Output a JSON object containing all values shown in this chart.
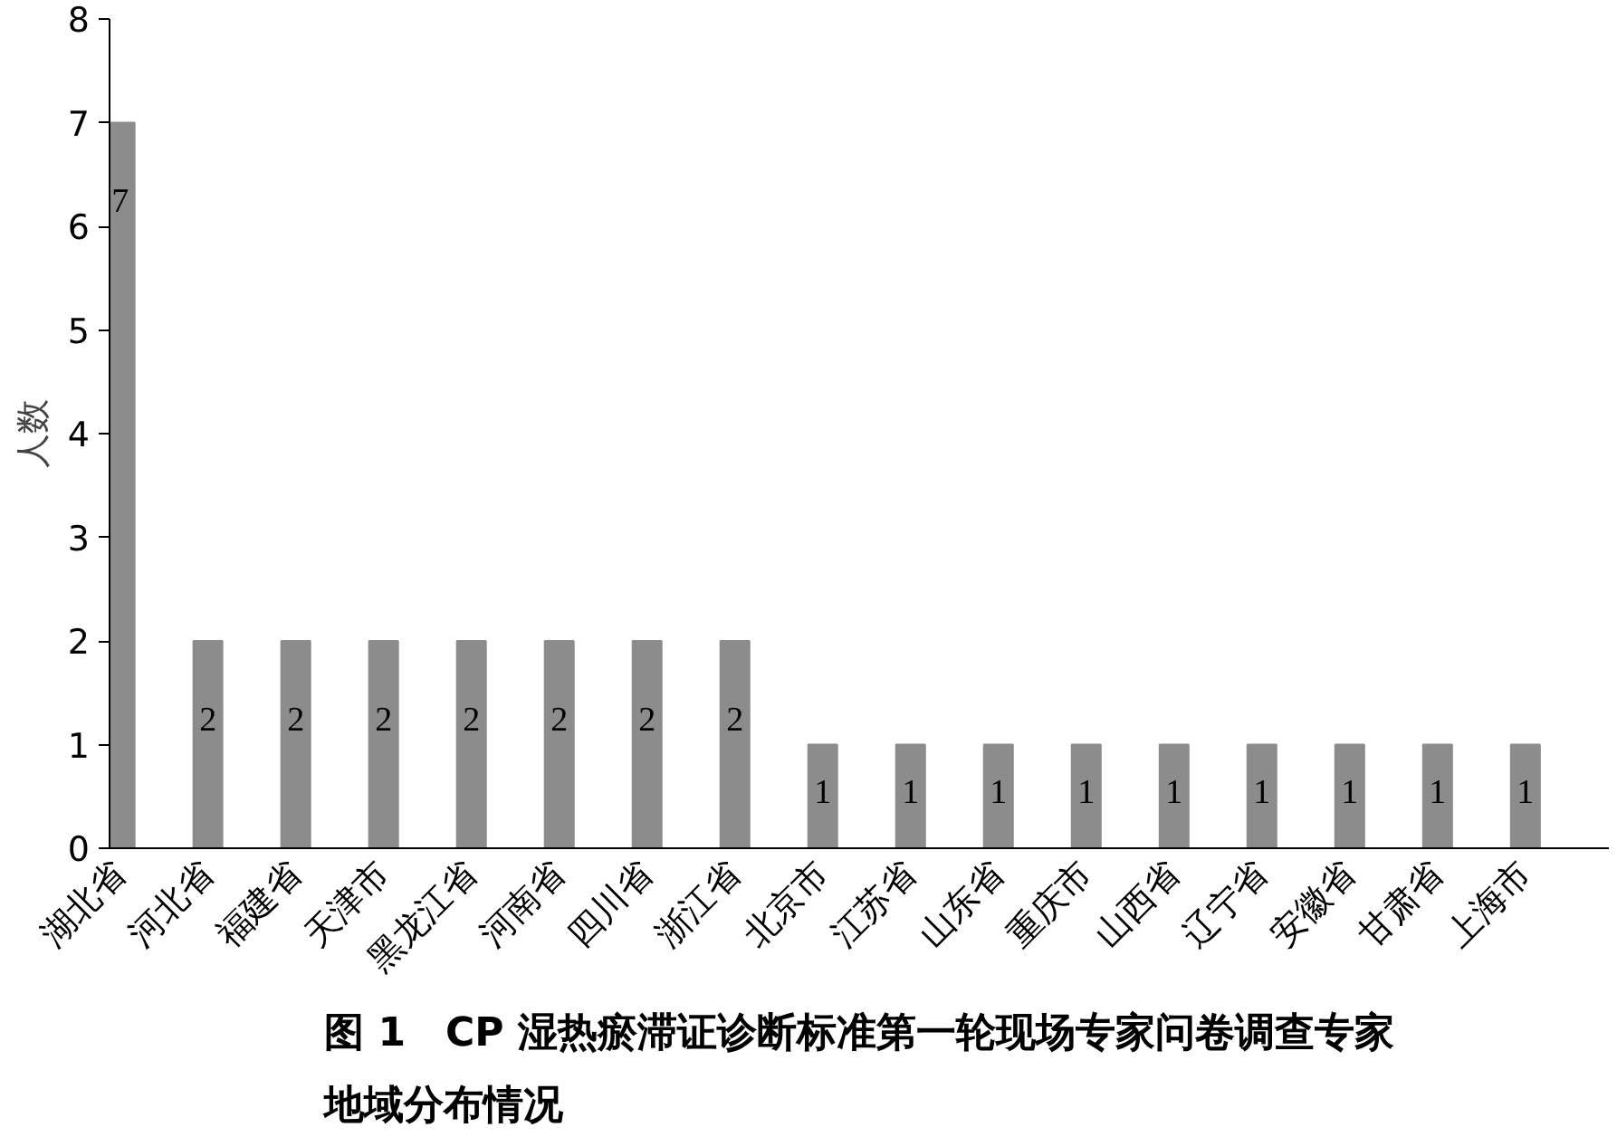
{
  "chart_data": {
    "type": "bar",
    "title": "图 1　CP 湿热瘀滞证诊断标准第一轮现场专家问卷调查专家地域分布情况",
    "ylabel": "人数",
    "categories": [
      "湖北省",
      "河北省",
      "福建省",
      "天津市",
      "黑龙江省",
      "河南省",
      "四川省",
      "浙江省",
      "北京市",
      "江苏省",
      "山东省",
      "重庆市",
      "山西省",
      "辽宁省",
      "安徽省",
      "甘肃省",
      "上海市"
    ],
    "values": [
      7,
      2,
      2,
      2,
      2,
      2,
      2,
      2,
      1,
      1,
      1,
      1,
      1,
      1,
      1,
      1,
      1
    ],
    "color": "#8c8c8c",
    "ylim": [
      0,
      8
    ],
    "yticks": [
      0,
      1,
      2,
      3,
      4,
      5,
      6,
      7,
      8
    ],
    "data_labels": true,
    "grid": false
  }
}
